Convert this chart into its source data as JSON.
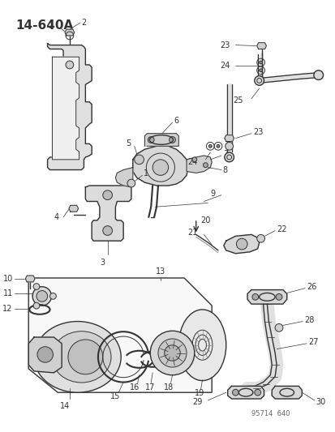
{
  "title": "14-640A",
  "watermark": "95714  640",
  "bg_color": "#ffffff",
  "line_color": "#333333",
  "fill_light": "#e8e8e8",
  "fill_mid": "#d0d0d0",
  "fill_dark": "#b8b8b8"
}
